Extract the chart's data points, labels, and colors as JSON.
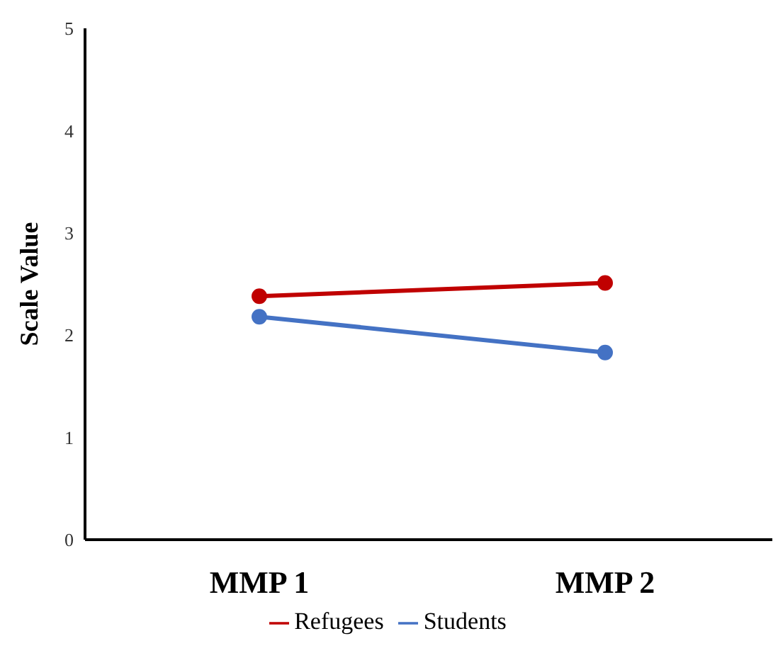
{
  "chart_data": {
    "type": "line",
    "ylabel": "Scale Value",
    "categories": [
      "MMP 1",
      "MMP 2"
    ],
    "series": [
      {
        "name": "Students",
        "color": "#4472c4",
        "values": [
          2.18,
          1.83
        ]
      },
      {
        "name": "Refugees",
        "color": "#c00000",
        "values": [
          2.38,
          2.51
        ]
      }
    ],
    "ylim": [
      0,
      5
    ],
    "yticks": [
      0,
      1,
      2,
      3,
      4,
      5
    ],
    "grid": false,
    "legend": "bottom",
    "marker": "circle",
    "line_style": "solid"
  }
}
